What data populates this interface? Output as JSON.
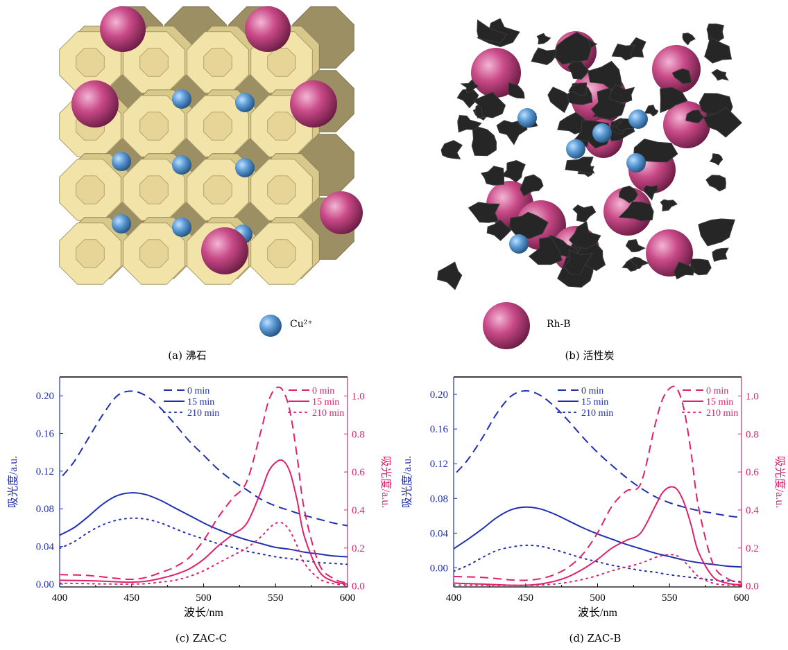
{
  "illustrations": {
    "zeolite_caption": "(a) 沸石",
    "carbon_caption": "(b) 活性炭",
    "legend": {
      "cu_label": "Cu²⁺",
      "rhb_label": "Rh-B"
    },
    "colors": {
      "zeolite": "#f2e4a8",
      "zeolite_shadow": "#9c8f63",
      "carbon": "#262626",
      "cu": "#5b9bd5",
      "rhb": "#c94a88"
    }
  },
  "chart_data": [
    {
      "type": "line",
      "caption": "(c) ZAC-C",
      "xlabel": "波长/nm",
      "ylabel_left": "吸光度/a.u.",
      "ylabel_right": "吸光度/a.u.",
      "xlim": [
        400,
        600
      ],
      "ylim_left": [
        -0.003,
        0.22
      ],
      "ylim_right": [
        -0.005,
        1.1
      ],
      "xticks": [
        "400",
        "450",
        "500",
        "550",
        "600"
      ],
      "yticks_left": [
        "0.00",
        "0.04",
        "0.08",
        "0.12",
        "0.16",
        "0.20"
      ],
      "yticks_right": [
        "0.0",
        "0.2",
        "0.4",
        "0.6",
        "0.8",
        "1.0"
      ],
      "colors": {
        "left": "#1f2fb0",
        "right": "#e0206a"
      },
      "legend_left": [
        "0 min",
        "15 min",
        "210 min"
      ],
      "legend_right": [
        "0 min",
        "15 min",
        "210 min"
      ],
      "series": [
        {
          "name": "0 min",
          "axis": "left",
          "style": "dash",
          "x": [
            402,
            410,
            420,
            430,
            440,
            450,
            460,
            470,
            480,
            490,
            500,
            510,
            520,
            530,
            540,
            550,
            560,
            570,
            580,
            590,
            600
          ],
          "y": [
            0.115,
            0.13,
            0.155,
            0.18,
            0.2,
            0.205,
            0.2,
            0.187,
            0.17,
            0.152,
            0.137,
            0.122,
            0.11,
            0.1,
            0.09,
            0.083,
            0.078,
            0.073,
            0.069,
            0.065,
            0.062
          ]
        },
        {
          "name": "15 min",
          "axis": "left",
          "style": "solid",
          "x": [
            400,
            410,
            420,
            430,
            440,
            450,
            460,
            470,
            480,
            490,
            500,
            510,
            520,
            530,
            540,
            550,
            560,
            570,
            580,
            590,
            600
          ],
          "y": [
            0.052,
            0.06,
            0.072,
            0.085,
            0.094,
            0.097,
            0.095,
            0.089,
            0.081,
            0.073,
            0.065,
            0.058,
            0.052,
            0.047,
            0.043,
            0.039,
            0.037,
            0.034,
            0.032,
            0.03,
            0.029
          ]
        },
        {
          "name": "210 min",
          "axis": "left",
          "style": "dot",
          "x": [
            400,
            410,
            420,
            430,
            440,
            450,
            460,
            470,
            480,
            490,
            500,
            510,
            520,
            530,
            540,
            550,
            560,
            570,
            580,
            590,
            600
          ],
          "y": [
            0.038,
            0.045,
            0.055,
            0.063,
            0.068,
            0.07,
            0.069,
            0.065,
            0.059,
            0.053,
            0.048,
            0.043,
            0.039,
            0.035,
            0.032,
            0.029,
            0.027,
            0.025,
            0.023,
            0.022,
            0.021
          ]
        },
        {
          "name": "0 min",
          "axis": "right",
          "style": "dash",
          "x": [
            400,
            420,
            440,
            450,
            460,
            470,
            480,
            490,
            500,
            510,
            520,
            530,
            540,
            545,
            550,
            555,
            560,
            565,
            570,
            580,
            590,
            600
          ],
          "y": [
            0.06,
            0.055,
            0.04,
            0.035,
            0.045,
            0.07,
            0.1,
            0.15,
            0.24,
            0.36,
            0.46,
            0.55,
            0.82,
            0.97,
            1.04,
            1.03,
            0.92,
            0.68,
            0.4,
            0.12,
            0.04,
            0.015
          ]
        },
        {
          "name": "15 min",
          "axis": "right",
          "style": "solid",
          "x": [
            400,
            420,
            440,
            450,
            460,
            470,
            480,
            490,
            500,
            510,
            520,
            530,
            540,
            545,
            550,
            555,
            560,
            565,
            570,
            580,
            590,
            600
          ],
          "y": [
            0.03,
            0.028,
            0.022,
            0.02,
            0.025,
            0.04,
            0.06,
            0.09,
            0.14,
            0.21,
            0.27,
            0.33,
            0.5,
            0.6,
            0.65,
            0.66,
            0.6,
            0.45,
            0.26,
            0.08,
            0.025,
            0.01
          ]
        },
        {
          "name": "210 min",
          "axis": "right",
          "style": "dot",
          "x": [
            400,
            420,
            440,
            450,
            460,
            470,
            480,
            490,
            500,
            510,
            520,
            530,
            540,
            545,
            550,
            555,
            560,
            565,
            570,
            580,
            590,
            600
          ],
          "y": [
            0.015,
            0.012,
            0.01,
            0.01,
            0.012,
            0.02,
            0.03,
            0.05,
            0.08,
            0.12,
            0.16,
            0.2,
            0.26,
            0.3,
            0.33,
            0.33,
            0.29,
            0.21,
            0.12,
            0.04,
            0.012,
            0.005
          ]
        }
      ]
    },
    {
      "type": "line",
      "caption": "(d) ZAC-B",
      "xlabel": "波长/nm",
      "ylabel_left": "吸光度/a.u.",
      "ylabel_right": "吸光度/a.u.",
      "xlim": [
        400,
        600
      ],
      "ylim_left": [
        -0.022,
        0.22
      ],
      "ylim_right": [
        -0.005,
        1.1
      ],
      "xticks": [
        "400",
        "450",
        "500",
        "550",
        "600"
      ],
      "yticks_left": [
        "0.00",
        "0.04",
        "0.08",
        "0.12",
        "0.16",
        "0.20"
      ],
      "yticks_right": [
        "0.0",
        "0.2",
        "0.4",
        "0.6",
        "0.8",
        "1.0"
      ],
      "colors": {
        "left": "#1f2fb0",
        "right": "#e0206a"
      },
      "legend_left": [
        "0 min",
        "15 min",
        "210 min"
      ],
      "legend_right": [
        "0 min",
        "15 min",
        "210 min"
      ],
      "series": [
        {
          "name": "0 min",
          "axis": "left",
          "style": "dash",
          "x": [
            402,
            410,
            420,
            430,
            440,
            450,
            460,
            470,
            480,
            490,
            500,
            510,
            520,
            530,
            540,
            550,
            560,
            570,
            580,
            590,
            600
          ],
          "y": [
            0.11,
            0.125,
            0.15,
            0.178,
            0.198,
            0.204,
            0.199,
            0.186,
            0.169,
            0.15,
            0.133,
            0.118,
            0.104,
            0.092,
            0.082,
            0.075,
            0.07,
            0.066,
            0.063,
            0.06,
            0.058
          ]
        },
        {
          "name": "15 min",
          "axis": "left",
          "style": "solid",
          "x": [
            400,
            410,
            420,
            430,
            440,
            450,
            460,
            470,
            480,
            490,
            500,
            510,
            520,
            530,
            540,
            550,
            560,
            570,
            580,
            590,
            600
          ],
          "y": [
            0.022,
            0.033,
            0.045,
            0.058,
            0.067,
            0.07,
            0.068,
            0.062,
            0.054,
            0.046,
            0.039,
            0.033,
            0.027,
            0.022,
            0.017,
            0.013,
            0.009,
            0.006,
            0.004,
            0.002,
            0.001
          ]
        },
        {
          "name": "210 min",
          "axis": "left",
          "style": "dot",
          "x": [
            400,
            410,
            420,
            430,
            440,
            450,
            460,
            470,
            480,
            490,
            500,
            510,
            520,
            530,
            540,
            550,
            560,
            570,
            580,
            590,
            600
          ],
          "y": [
            -0.004,
            0.003,
            0.012,
            0.02,
            0.024,
            0.026,
            0.025,
            0.021,
            0.016,
            0.011,
            0.007,
            0.003,
            0.0,
            -0.003,
            -0.005,
            -0.008,
            -0.01,
            -0.012,
            -0.014,
            -0.015,
            -0.016
          ]
        },
        {
          "name": "0 min",
          "axis": "right",
          "style": "dash",
          "x": [
            400,
            420,
            440,
            450,
            460,
            470,
            480,
            490,
            500,
            510,
            520,
            530,
            540,
            545,
            550,
            555,
            560,
            565,
            570,
            580,
            590,
            600
          ],
          "y": [
            0.05,
            0.045,
            0.032,
            0.03,
            0.038,
            0.06,
            0.1,
            0.17,
            0.28,
            0.42,
            0.5,
            0.54,
            0.85,
            0.98,
            1.04,
            1.04,
            0.93,
            0.7,
            0.42,
            0.12,
            0.04,
            0.015
          ]
        },
        {
          "name": "15 min",
          "axis": "right",
          "style": "solid",
          "x": [
            400,
            420,
            440,
            450,
            460,
            470,
            480,
            490,
            500,
            510,
            520,
            530,
            540,
            545,
            550,
            555,
            560,
            565,
            570,
            580,
            590,
            600
          ],
          "y": [
            0.015,
            0.01,
            0.004,
            0.004,
            0.01,
            0.025,
            0.05,
            0.09,
            0.14,
            0.2,
            0.24,
            0.28,
            0.42,
            0.49,
            0.52,
            0.51,
            0.44,
            0.32,
            0.18,
            0.05,
            0.015,
            0.005
          ]
        },
        {
          "name": "210 min",
          "axis": "right",
          "style": "dot",
          "x": [
            400,
            420,
            440,
            450,
            460,
            470,
            480,
            490,
            500,
            510,
            520,
            530,
            540,
            545,
            550,
            555,
            560,
            565,
            570,
            580,
            590,
            600
          ],
          "y": [
            0.005,
            0.004,
            0.003,
            0.003,
            0.005,
            0.01,
            0.02,
            0.035,
            0.055,
            0.08,
            0.1,
            0.12,
            0.15,
            0.16,
            0.165,
            0.16,
            0.13,
            0.09,
            0.05,
            0.015,
            0.005,
            0.002
          ]
        }
      ]
    }
  ]
}
